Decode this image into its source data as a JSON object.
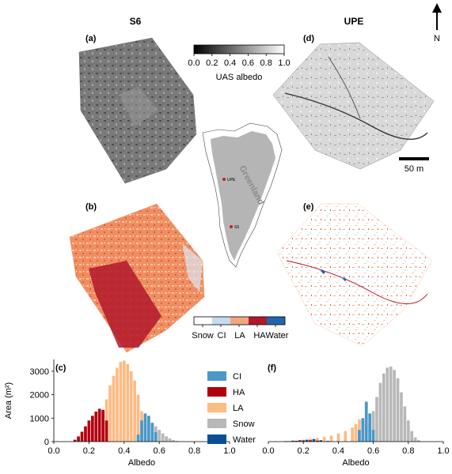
{
  "figure": {
    "col_titles": [
      "S6",
      "UPE"
    ],
    "panel_labels": {
      "a": "(a)",
      "b": "(b)",
      "c": "(c)",
      "d": "(d)",
      "e": "(e)",
      "f": "(f)"
    },
    "north_label": "N",
    "scale_bar_label": "50 m",
    "map_labels": {
      "region": "Greenland",
      "site_upe": "UPE",
      "site_s6": "S6"
    },
    "albedo_colorbar": {
      "title": "UAS albedo",
      "ticks": [
        "0.0",
        "0.2",
        "0.4",
        "0.6",
        "0.8",
        "1.0"
      ]
    },
    "class_colorbar": {
      "labels": [
        "Snow",
        "CI",
        "LA",
        "HA",
        "Water"
      ]
    }
  },
  "colors": {
    "snow": "#b8b8b8",
    "ci": "#4a97c9",
    "la": "#fdbb84",
    "ha": "#b2000e",
    "water": "#0b4f95",
    "snow_bar": "#ffffff",
    "ci_bar": "#c6dbef",
    "la_bar": "#f4a582",
    "ha_bar": "#b2182b",
    "water_bar": "#2166ac"
  },
  "legend": [
    {
      "label": "CI",
      "color": "#4a97c9"
    },
    {
      "label": "HA",
      "color": "#b2000e"
    },
    {
      "label": "LA",
      "color": "#fdbb84"
    },
    {
      "label": "Snow",
      "color": "#b8b8b8"
    },
    {
      "label": "Water",
      "color": "#0b4f95"
    }
  ],
  "chart_data": [
    {
      "panel": "(c)",
      "type": "bar",
      "xlabel": "Albedo",
      "ylabel": "Area (m²)",
      "xlim": [
        0.0,
        1.0
      ],
      "ylim": [
        0,
        3500
      ],
      "xticks": [
        "0.0",
        "0.2",
        "0.4",
        "0.6",
        "0.8",
        "1.0"
      ],
      "yticks": [
        "0",
        "1000",
        "2000",
        "3000"
      ],
      "bin_width": 0.0167,
      "series": [
        {
          "name": "Water",
          "x": [
            0.12,
            0.14,
            0.16
          ],
          "values": [
            30,
            40,
            30
          ]
        },
        {
          "name": "HA",
          "x": [
            0.12,
            0.14,
            0.16,
            0.18,
            0.2,
            0.22,
            0.24,
            0.26,
            0.28,
            0.3
          ],
          "values": [
            80,
            220,
            420,
            650,
            900,
            1100,
            1280,
            1400,
            1350,
            900
          ]
        },
        {
          "name": "LA",
          "x": [
            0.3,
            0.32,
            0.34,
            0.36,
            0.38,
            0.4,
            0.42,
            0.44,
            0.46,
            0.48,
            0.5,
            0.52,
            0.54
          ],
          "values": [
            1800,
            2400,
            2800,
            3150,
            3400,
            3450,
            3300,
            3000,
            2600,
            2000,
            1300,
            700,
            250
          ]
        },
        {
          "name": "CI",
          "x": [
            0.48,
            0.5,
            0.52,
            0.54,
            0.56,
            0.58
          ],
          "values": [
            300,
            900,
            1200,
            1100,
            800,
            400
          ]
        },
        {
          "name": "Snow",
          "x": [
            0.56,
            0.58,
            0.6,
            0.62,
            0.64,
            0.66,
            0.68,
            0.7
          ],
          "values": [
            800,
            650,
            500,
            350,
            230,
            140,
            70,
            30
          ]
        }
      ]
    },
    {
      "panel": "(f)",
      "type": "bar",
      "xlabel": "Albedo",
      "ylabel": "",
      "xlim": [
        0.0,
        1.0
      ],
      "ylim": [
        0,
        3500
      ],
      "xticks": [
        "0.0",
        "0.2",
        "0.4",
        "0.6",
        "0.8",
        "1.0"
      ],
      "bin_width": 0.0167,
      "series": [
        {
          "name": "Water",
          "x": [
            0.1,
            0.14,
            0.18,
            0.22,
            0.26,
            0.3,
            0.34
          ],
          "values": [
            20,
            40,
            60,
            80,
            110,
            60,
            30
          ]
        },
        {
          "name": "HA",
          "x": [
            0.12,
            0.16,
            0.2,
            0.24,
            0.28
          ],
          "values": [
            20,
            35,
            50,
            60,
            40
          ]
        },
        {
          "name": "LA",
          "x": [
            0.16,
            0.2,
            0.24,
            0.28,
            0.32,
            0.36,
            0.4,
            0.44,
            0.48,
            0.5,
            0.52,
            0.54
          ],
          "values": [
            40,
            80,
            120,
            160,
            200,
            260,
            340,
            450,
            600,
            750,
            950,
            900
          ]
        },
        {
          "name": "CI",
          "x": [
            0.52,
            0.54,
            0.56,
            0.58,
            0.6
          ],
          "values": [
            500,
            1000,
            1700,
            1200,
            500
          ]
        },
        {
          "name": "Snow",
          "x": [
            0.58,
            0.6,
            0.62,
            0.64,
            0.66,
            0.68,
            0.7,
            0.72,
            0.74,
            0.76,
            0.78,
            0.8,
            0.82,
            0.84,
            0.86
          ],
          "values": [
            800,
            1300,
            1900,
            2500,
            2900,
            3150,
            3200,
            3050,
            2700,
            2100,
            1500,
            900,
            450,
            180,
            60
          ]
        }
      ]
    }
  ]
}
